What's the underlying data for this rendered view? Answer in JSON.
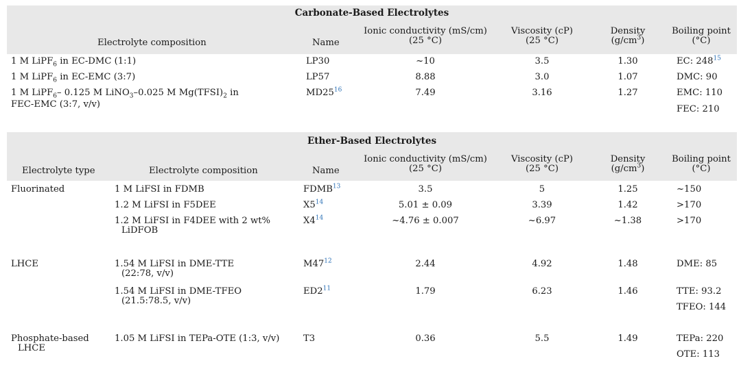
{
  "carbonate": {
    "title": "Carbonate-Based Electrolytes",
    "headers": {
      "composition": "Electrolyte composition",
      "name": "Name",
      "conductivity": "Ionic conductivity (mS/cm)",
      "conductivity_cond": "(25 °C)",
      "viscosity": "Viscosity (cP)",
      "viscosity_cond": "(25 °C)",
      "density": "Density",
      "density_unit": "(g/cm",
      "density_exp": "3",
      "density_close": ")",
      "boiling": "Boiling point",
      "boiling_unit": "(°C)"
    },
    "rows": [
      {
        "comp_a": "1 M LiPF",
        "comp_sub": "6",
        "comp_b": " in EC-DMC (1:1)",
        "name": "LP30",
        "cond": "~10",
        "visc": "3.5",
        "dens": "1.30",
        "bp": "EC: 248",
        "bp_ref": "15"
      },
      {
        "comp_a": "1 M LiPF",
        "comp_sub": "6",
        "comp_b": " in EC-EMC (3:7)",
        "name": "LP57",
        "cond": "8.88",
        "visc": "3.0",
        "dens": "1.07",
        "bp": "DMC: 90"
      },
      {
        "comp_a": "1 M LiPF",
        "comp_sub": "6",
        "comp_b": "– 0.125 M LiNO",
        "comp_sub2": "3",
        "comp_c": "–0.025 M Mg(TFSI)",
        "comp_sub3": "2",
        "comp_d": " in",
        "comp_line2": "FEC-EMC (3:7, v/v)",
        "name": "MD25",
        "name_ref": "16",
        "cond": "7.49",
        "visc": "3.16",
        "dens": "1.27",
        "bp": "EMC: 110",
        "bp2": "FEC: 210"
      }
    ]
  },
  "ether": {
    "title": "Ether-Based Electrolytes",
    "headers": {
      "type": "Electrolyte type",
      "composition": "Electrolyte composition",
      "name": "Name",
      "conductivity": "Ionic conductivity (mS/cm)",
      "conductivity_cond": "(25 °C)",
      "viscosity": "Viscosity (cP)",
      "viscosity_cond": "(25 °C)",
      "density": "Density",
      "density_unit": "(g/cm",
      "density_exp": "3",
      "density_close": ")",
      "boiling": "Boiling point",
      "boiling_unit": "(°C)"
    },
    "rows": [
      {
        "type": "Fluorinated",
        "comp": "1 M LiFSI in FDMB",
        "name": "FDMB",
        "name_ref": "13",
        "cond": "3.5",
        "visc": "5",
        "dens": "1.25",
        "bp": "~150"
      },
      {
        "type": "",
        "comp": "1.2 M LiFSI in F5DEE",
        "name": "X5",
        "name_ref": "14",
        "cond": "5.01 ± 0.09",
        "visc": "3.39",
        "dens": "1.42",
        "bp": ">170"
      },
      {
        "type": "",
        "comp": "1.2 M LiFSI in F4DEE with 2 wt%",
        "comp2": "LiDFOB",
        "name": "X4",
        "name_ref": "14",
        "cond": "~4.76 ± 0.007",
        "visc": "~6.97",
        "dens": "~1.38",
        "bp": ">170"
      },
      {
        "type": "LHCE",
        "comp": "1.54 M LiFSI in DME-TTE",
        "comp2": "(22:78, v/v)",
        "name": "M47",
        "name_ref": "12",
        "cond": "2.44",
        "visc": "4.92",
        "dens": "1.48",
        "bp": "DME: 85"
      },
      {
        "type": "",
        "comp": "1.54 M LiFSI in DME-TFEO",
        "comp2": "(21.5:78.5, v/v)",
        "name": "ED2",
        "name_ref": "11",
        "cond": "1.79",
        "visc": "6.23",
        "dens": "1.46",
        "bp": "TTE: 93.2",
        "bp2": "TFEO: 144"
      },
      {
        "type": "Phosphate-based",
        "type2": "LHCE",
        "comp": "1.05 M LiFSI in TEPa-OTE (1:3, v/v)",
        "name": "T3",
        "cond": "0.36",
        "visc": "5.5",
        "dens": "1.49",
        "bp": "TEPa: 220",
        "bp2": "OTE: 113"
      }
    ]
  }
}
